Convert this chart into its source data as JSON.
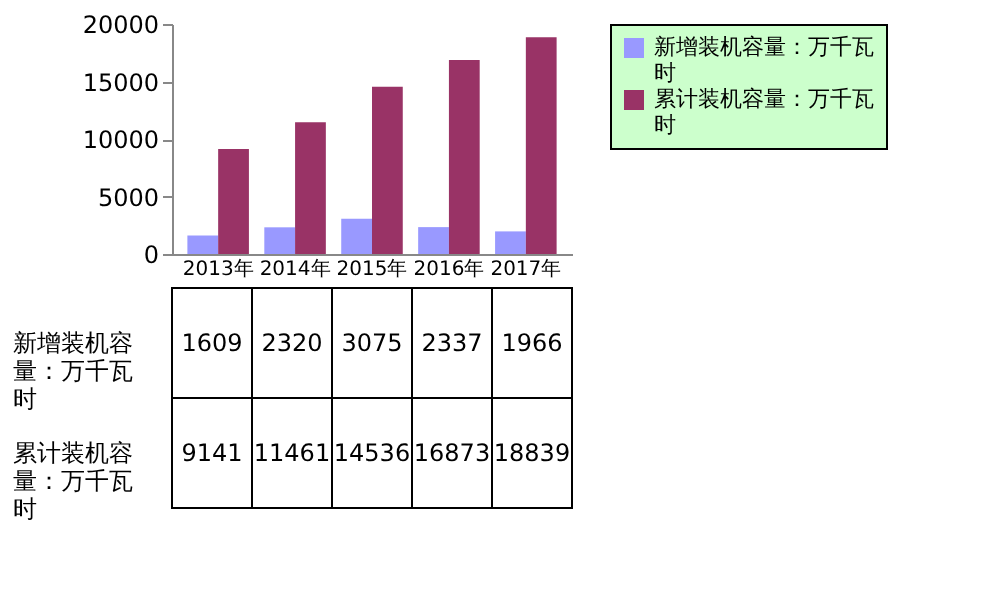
{
  "chart_data": {
    "type": "bar",
    "categories": [
      "2013年",
      "2014年",
      "2015年",
      "2016年",
      "2017年"
    ],
    "series": [
      {
        "name": "新增装机容量：万千瓦时",
        "color": "#9999ff",
        "values": [
          1609,
          2320,
          3075,
          2337,
          1966
        ]
      },
      {
        "name": "累计装机容量：万千瓦时",
        "color": "#993366",
        "values": [
          9141,
          11461,
          14536,
          16873,
          18839
        ]
      }
    ],
    "ylim": [
      0,
      20000
    ],
    "yticks": [
      0,
      5000,
      10000,
      15000,
      20000
    ],
    "grid": false,
    "legend": "right",
    "data_labels": true
  }
}
